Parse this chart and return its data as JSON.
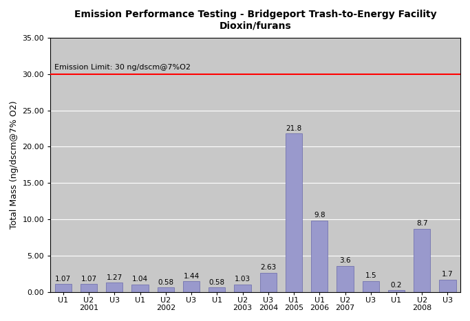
{
  "title_line1": "Emission Performance Testing - Bridgeport Trash-to-Energy Facility",
  "title_line2": "Dioxin/furans",
  "ylabel": "Total Mass (ng/dscm@7% O2)",
  "emission_limit": 30.0,
  "emission_limit_label": "Emission Limit: 30 ng/dscm@7%O2",
  "ylim": [
    0,
    35.0
  ],
  "yticks": [
    0.0,
    5.0,
    10.0,
    15.0,
    20.0,
    25.0,
    30.0,
    35.0
  ],
  "bar_color": "#9999cc",
  "bar_edgecolor": "#6666aa",
  "plot_bg_color": "#c8c8c8",
  "fig_bg_color": "#ffffff",
  "bars": [
    {
      "unit": "U1",
      "year": "",
      "value": 1.07
    },
    {
      "unit": "U2",
      "year": "2001",
      "value": 1.07
    },
    {
      "unit": "U3",
      "year": "",
      "value": 1.27
    },
    {
      "unit": "U1",
      "year": "",
      "value": 1.04
    },
    {
      "unit": "U2",
      "year": "2002",
      "value": 0.58
    },
    {
      "unit": "U3",
      "year": "",
      "value": 1.44
    },
    {
      "unit": "U1",
      "year": "",
      "value": 0.58
    },
    {
      "unit": "U2",
      "year": "2003",
      "value": 1.03
    },
    {
      "unit": "U3",
      "year": "2004",
      "value": 2.63
    },
    {
      "unit": "U1",
      "year": "2005",
      "value": 21.8
    },
    {
      "unit": "U1",
      "year": "2006",
      "value": 9.8
    },
    {
      "unit": "U2",
      "year": "2007",
      "value": 3.6
    },
    {
      "unit": "U3",
      "year": "",
      "value": 1.5
    },
    {
      "unit": "U1",
      "year": "",
      "value": 0.2
    },
    {
      "unit": "U2",
      "year": "2008",
      "value": 8.7
    },
    {
      "unit": "U3",
      "year": "",
      "value": 1.7
    }
  ]
}
